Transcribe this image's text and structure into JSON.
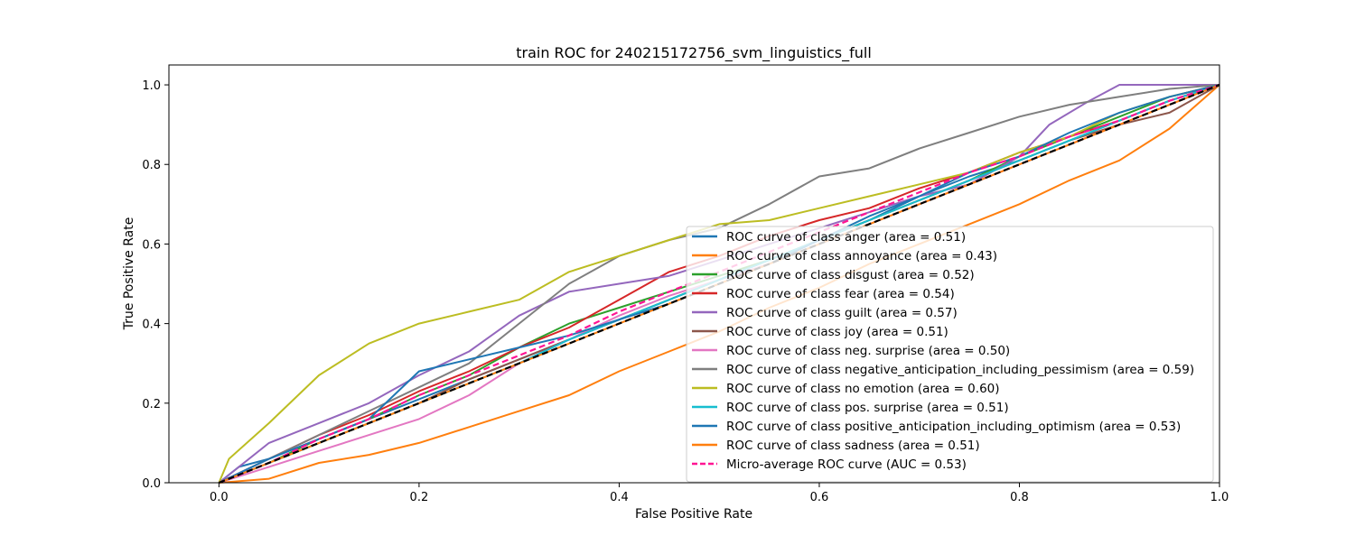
{
  "chart_data": {
    "type": "line",
    "title": "train ROC for 240215172756_svm_linguistics_full",
    "xlabel": "False Positive Rate",
    "ylabel": "True Positive Rate",
    "xlim": [
      -0.05,
      1.0
    ],
    "ylim": [
      0.0,
      1.05
    ],
    "xticks": [
      "0.0",
      "0.2",
      "0.4",
      "0.6",
      "0.8",
      "1.0"
    ],
    "yticks": [
      "0.0",
      "0.2",
      "0.4",
      "0.6",
      "0.8",
      "1.0"
    ],
    "grid": false,
    "legend_position": "lower-right",
    "series": [
      {
        "name": "ROC curve of class anger (area = 0.51)",
        "color": "#1f77b4",
        "dash": "solid",
        "points": [
          [
            0,
            0
          ],
          [
            0.02,
            0.04
          ],
          [
            0.05,
            0.06
          ],
          [
            0.1,
            0.11
          ],
          [
            0.15,
            0.16
          ],
          [
            0.2,
            0.21
          ],
          [
            0.25,
            0.26
          ],
          [
            0.3,
            0.31
          ],
          [
            0.35,
            0.36
          ],
          [
            0.4,
            0.41
          ],
          [
            0.45,
            0.46
          ],
          [
            0.5,
            0.51
          ],
          [
            0.55,
            0.56
          ],
          [
            0.6,
            0.61
          ],
          [
            0.65,
            0.66
          ],
          [
            0.7,
            0.72
          ],
          [
            0.75,
            0.77
          ],
          [
            0.8,
            0.81
          ],
          [
            0.85,
            0.86
          ],
          [
            0.9,
            0.91
          ],
          [
            0.95,
            0.96
          ],
          [
            1,
            1
          ]
        ]
      },
      {
        "name": "ROC curve of class annoyance (area = 0.43)",
        "color": "#ff7f0e",
        "dash": "solid",
        "points": [
          [
            0,
            0
          ],
          [
            0.05,
            0.01
          ],
          [
            0.1,
            0.05
          ],
          [
            0.15,
            0.07
          ],
          [
            0.2,
            0.1
          ],
          [
            0.25,
            0.14
          ],
          [
            0.3,
            0.18
          ],
          [
            0.35,
            0.22
          ],
          [
            0.4,
            0.28
          ],
          [
            0.45,
            0.33
          ],
          [
            0.5,
            0.38
          ],
          [
            0.55,
            0.44
          ],
          [
            0.6,
            0.49
          ],
          [
            0.65,
            0.55
          ],
          [
            0.7,
            0.6
          ],
          [
            0.75,
            0.65
          ],
          [
            0.8,
            0.7
          ],
          [
            0.85,
            0.76
          ],
          [
            0.9,
            0.81
          ],
          [
            0.95,
            0.89
          ],
          [
            1,
            1
          ]
        ]
      },
      {
        "name": "ROC curve of class disgust (area = 0.52)",
        "color": "#2ca02c",
        "dash": "solid",
        "points": [
          [
            0,
            0
          ],
          [
            0.05,
            0.05
          ],
          [
            0.1,
            0.11
          ],
          [
            0.15,
            0.16
          ],
          [
            0.2,
            0.22
          ],
          [
            0.25,
            0.27
          ],
          [
            0.3,
            0.34
          ],
          [
            0.35,
            0.4
          ],
          [
            0.4,
            0.44
          ],
          [
            0.45,
            0.48
          ],
          [
            0.5,
            0.52
          ],
          [
            0.55,
            0.56
          ],
          [
            0.6,
            0.61
          ],
          [
            0.65,
            0.66
          ],
          [
            0.7,
            0.71
          ],
          [
            0.75,
            0.76
          ],
          [
            0.8,
            0.82
          ],
          [
            0.85,
            0.87
          ],
          [
            0.9,
            0.92
          ],
          [
            0.95,
            0.97
          ],
          [
            1,
            1
          ]
        ]
      },
      {
        "name": "ROC curve of class fear (area = 0.54)",
        "color": "#d62728",
        "dash": "solid",
        "points": [
          [
            0,
            0
          ],
          [
            0.05,
            0.06
          ],
          [
            0.1,
            0.12
          ],
          [
            0.15,
            0.17
          ],
          [
            0.2,
            0.23
          ],
          [
            0.25,
            0.28
          ],
          [
            0.3,
            0.34
          ],
          [
            0.35,
            0.39
          ],
          [
            0.4,
            0.46
          ],
          [
            0.45,
            0.53
          ],
          [
            0.5,
            0.57
          ],
          [
            0.55,
            0.62
          ],
          [
            0.6,
            0.66
          ],
          [
            0.65,
            0.69
          ],
          [
            0.7,
            0.74
          ],
          [
            0.75,
            0.78
          ],
          [
            0.8,
            0.83
          ],
          [
            0.85,
            0.87
          ],
          [
            0.9,
            0.91
          ],
          [
            0.95,
            0.96
          ],
          [
            1,
            1
          ]
        ]
      },
      {
        "name": "ROC curve of class guilt (area = 0.57)",
        "color": "#9467bd",
        "dash": "solid",
        "points": [
          [
            0,
            0
          ],
          [
            0.05,
            0.1
          ],
          [
            0.1,
            0.15
          ],
          [
            0.15,
            0.2
          ],
          [
            0.2,
            0.27
          ],
          [
            0.25,
            0.33
          ],
          [
            0.3,
            0.42
          ],
          [
            0.35,
            0.48
          ],
          [
            0.4,
            0.5
          ],
          [
            0.45,
            0.52
          ],
          [
            0.5,
            0.56
          ],
          [
            0.55,
            0.6
          ],
          [
            0.6,
            0.64
          ],
          [
            0.65,
            0.68
          ],
          [
            0.7,
            0.72
          ],
          [
            0.75,
            0.75
          ],
          [
            0.8,
            0.82
          ],
          [
            0.83,
            0.9
          ],
          [
            0.87,
            0.96
          ],
          [
            0.9,
            1.0
          ],
          [
            1,
            1
          ]
        ]
      },
      {
        "name": "ROC curve of class joy (area = 0.51)",
        "color": "#8c564b",
        "dash": "solid",
        "points": [
          [
            0,
            0
          ],
          [
            0.05,
            0.05
          ],
          [
            0.1,
            0.1
          ],
          [
            0.15,
            0.15
          ],
          [
            0.2,
            0.2
          ],
          [
            0.25,
            0.26
          ],
          [
            0.3,
            0.31
          ],
          [
            0.35,
            0.36
          ],
          [
            0.4,
            0.41
          ],
          [
            0.45,
            0.46
          ],
          [
            0.5,
            0.51
          ],
          [
            0.55,
            0.56
          ],
          [
            0.6,
            0.61
          ],
          [
            0.65,
            0.66
          ],
          [
            0.7,
            0.71
          ],
          [
            0.75,
            0.76
          ],
          [
            0.8,
            0.81
          ],
          [
            0.85,
            0.86
          ],
          [
            0.9,
            0.9
          ],
          [
            0.95,
            0.93
          ],
          [
            1,
            1
          ]
        ]
      },
      {
        "name": "ROC curve of class neg. surprise (area = 0.50)",
        "color": "#e377c2",
        "dash": "solid",
        "points": [
          [
            0,
            0
          ],
          [
            0.05,
            0.04
          ],
          [
            0.1,
            0.08
          ],
          [
            0.15,
            0.12
          ],
          [
            0.2,
            0.16
          ],
          [
            0.25,
            0.22
          ],
          [
            0.3,
            0.3
          ],
          [
            0.35,
            0.36
          ],
          [
            0.4,
            0.42
          ],
          [
            0.45,
            0.47
          ],
          [
            0.5,
            0.51
          ],
          [
            0.55,
            0.55
          ],
          [
            0.6,
            0.6
          ],
          [
            0.65,
            0.65
          ],
          [
            0.7,
            0.7
          ],
          [
            0.75,
            0.75
          ],
          [
            0.8,
            0.8
          ],
          [
            0.85,
            0.85
          ],
          [
            0.9,
            0.9
          ],
          [
            0.95,
            0.95
          ],
          [
            1,
            1
          ]
        ]
      },
      {
        "name": "ROC curve of class negative_anticipation_including_pessimism (area = 0.59)",
        "color": "#7f7f7f",
        "dash": "solid",
        "points": [
          [
            0,
            0
          ],
          [
            0.05,
            0.06
          ],
          [
            0.1,
            0.12
          ],
          [
            0.15,
            0.18
          ],
          [
            0.2,
            0.24
          ],
          [
            0.25,
            0.3
          ],
          [
            0.3,
            0.4
          ],
          [
            0.35,
            0.5
          ],
          [
            0.4,
            0.57
          ],
          [
            0.45,
            0.61
          ],
          [
            0.5,
            0.64
          ],
          [
            0.55,
            0.7
          ],
          [
            0.6,
            0.77
          ],
          [
            0.65,
            0.79
          ],
          [
            0.7,
            0.84
          ],
          [
            0.75,
            0.88
          ],
          [
            0.8,
            0.92
          ],
          [
            0.85,
            0.95
          ],
          [
            0.9,
            0.97
          ],
          [
            0.95,
            0.99
          ],
          [
            1,
            1
          ]
        ]
      },
      {
        "name": "ROC curve of class no emotion (area = 0.60)",
        "color": "#bcbd22",
        "dash": "solid",
        "points": [
          [
            0,
            0
          ],
          [
            0.01,
            0.06
          ],
          [
            0.05,
            0.15
          ],
          [
            0.1,
            0.27
          ],
          [
            0.15,
            0.35
          ],
          [
            0.2,
            0.4
          ],
          [
            0.25,
            0.43
          ],
          [
            0.3,
            0.46
          ],
          [
            0.35,
            0.53
          ],
          [
            0.4,
            0.57
          ],
          [
            0.45,
            0.61
          ],
          [
            0.5,
            0.65
          ],
          [
            0.55,
            0.66
          ],
          [
            0.6,
            0.69
          ],
          [
            0.65,
            0.72
          ],
          [
            0.7,
            0.75
          ],
          [
            0.75,
            0.78
          ],
          [
            0.8,
            0.83
          ],
          [
            0.85,
            0.87
          ],
          [
            0.9,
            0.93
          ],
          [
            0.95,
            0.97
          ],
          [
            1,
            1
          ]
        ]
      },
      {
        "name": "ROC curve of class pos. surprise (area = 0.51)",
        "color": "#17becf",
        "dash": "solid",
        "points": [
          [
            0,
            0
          ],
          [
            0.05,
            0.05
          ],
          [
            0.1,
            0.1
          ],
          [
            0.15,
            0.15
          ],
          [
            0.2,
            0.2
          ],
          [
            0.25,
            0.25
          ],
          [
            0.3,
            0.3
          ],
          [
            0.35,
            0.36
          ],
          [
            0.4,
            0.41
          ],
          [
            0.45,
            0.46
          ],
          [
            0.5,
            0.51
          ],
          [
            0.55,
            0.56
          ],
          [
            0.6,
            0.61
          ],
          [
            0.65,
            0.66
          ],
          [
            0.7,
            0.71
          ],
          [
            0.75,
            0.76
          ],
          [
            0.8,
            0.81
          ],
          [
            0.85,
            0.86
          ],
          [
            0.9,
            0.91
          ],
          [
            0.95,
            0.96
          ],
          [
            1,
            1
          ]
        ]
      },
      {
        "name": "ROC curve of class positive_anticipation_including_optimism (area = 0.53)",
        "color": "#1f77b4",
        "dash": "solid",
        "points": [
          [
            0,
            0
          ],
          [
            0.05,
            0.06
          ],
          [
            0.1,
            0.11
          ],
          [
            0.15,
            0.16
          ],
          [
            0.2,
            0.28
          ],
          [
            0.25,
            0.31
          ],
          [
            0.3,
            0.34
          ],
          [
            0.35,
            0.37
          ],
          [
            0.4,
            0.41
          ],
          [
            0.45,
            0.45
          ],
          [
            0.5,
            0.5
          ],
          [
            0.55,
            0.55
          ],
          [
            0.6,
            0.61
          ],
          [
            0.65,
            0.67
          ],
          [
            0.7,
            0.72
          ],
          [
            0.75,
            0.78
          ],
          [
            0.8,
            0.82
          ],
          [
            0.85,
            0.88
          ],
          [
            0.9,
            0.93
          ],
          [
            0.95,
            0.97
          ],
          [
            1,
            1
          ]
        ]
      },
      {
        "name": "ROC curve of class sadness (area = 0.51)",
        "color": "#ff7f0e",
        "dash": "solid",
        "points": [
          [
            0,
            0
          ],
          [
            0.05,
            0.05
          ],
          [
            0.1,
            0.1
          ],
          [
            0.15,
            0.15
          ],
          [
            0.2,
            0.2
          ],
          [
            0.25,
            0.25
          ],
          [
            0.3,
            0.3
          ],
          [
            0.35,
            0.35
          ],
          [
            0.4,
            0.4
          ],
          [
            0.45,
            0.45
          ],
          [
            0.5,
            0.5
          ],
          [
            0.55,
            0.55
          ],
          [
            0.6,
            0.6
          ],
          [
            0.65,
            0.65
          ],
          [
            0.7,
            0.7
          ],
          [
            0.75,
            0.75
          ],
          [
            0.8,
            0.8
          ],
          [
            0.85,
            0.85
          ],
          [
            0.9,
            0.9
          ],
          [
            0.95,
            0.95
          ],
          [
            1,
            1
          ]
        ]
      },
      {
        "name": "Micro-average ROC curve (AUC = 0.53)",
        "color": "#ff1493",
        "dash": "dashed",
        "points": [
          [
            0,
            0
          ],
          [
            0.05,
            0.05
          ],
          [
            0.1,
            0.11
          ],
          [
            0.15,
            0.16
          ],
          [
            0.2,
            0.22
          ],
          [
            0.25,
            0.27
          ],
          [
            0.3,
            0.32
          ],
          [
            0.35,
            0.37
          ],
          [
            0.4,
            0.43
          ],
          [
            0.45,
            0.48
          ],
          [
            0.5,
            0.53
          ],
          [
            0.55,
            0.58
          ],
          [
            0.6,
            0.63
          ],
          [
            0.65,
            0.68
          ],
          [
            0.7,
            0.73
          ],
          [
            0.75,
            0.78
          ],
          [
            0.8,
            0.82
          ],
          [
            0.85,
            0.87
          ],
          [
            0.9,
            0.91
          ],
          [
            0.95,
            0.96
          ],
          [
            1,
            1
          ]
        ]
      }
    ],
    "reference_line": {
      "color": "#000000",
      "dash": "dashed",
      "points": [
        [
          0,
          0
        ],
        [
          1,
          1
        ]
      ]
    }
  }
}
